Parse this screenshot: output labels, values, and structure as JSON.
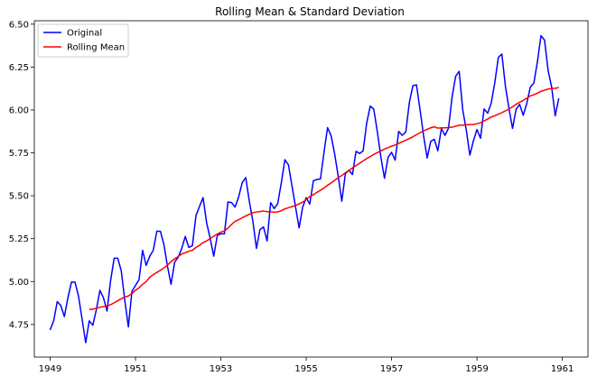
{
  "chart_data": {
    "type": "line",
    "title": "Rolling Mean & Standard Deviation",
    "xlabel": "",
    "ylabel": "",
    "xlim": [
      1948.63,
      1961.6
    ],
    "ylim": [
      4.56,
      6.52
    ],
    "x_ticks": [
      1949,
      1951,
      1953,
      1955,
      1957,
      1959,
      1961
    ],
    "x_tick_labels": [
      "1949",
      "1951",
      "1953",
      "1955",
      "1957",
      "1959",
      "1961"
    ],
    "y_ticks": [
      4.75,
      5.0,
      5.25,
      5.5,
      5.75,
      6.0,
      6.25,
      6.5
    ],
    "y_tick_labels": [
      "4.75",
      "5.00",
      "5.25",
      "5.50",
      "5.75",
      "6.00",
      "6.25",
      "6.50"
    ],
    "grid": false,
    "legend_position": "top-left",
    "x_start": 1949.0,
    "x_step": 0.08333,
    "series": [
      {
        "name": "Original",
        "color": "#0000ff",
        "values": [
          4.718,
          4.771,
          4.883,
          4.86,
          4.796,
          4.905,
          4.997,
          4.997,
          4.913,
          4.779,
          4.644,
          4.771,
          4.745,
          4.836,
          4.949,
          4.905,
          4.828,
          5.004,
          5.136,
          5.136,
          5.063,
          4.89,
          4.736,
          4.942,
          4.977,
          5.011,
          5.182,
          5.094,
          5.147,
          5.182,
          5.293,
          5.293,
          5.215,
          5.088,
          4.984,
          5.112,
          5.142,
          5.193,
          5.263,
          5.199,
          5.209,
          5.384,
          5.438,
          5.489,
          5.342,
          5.252,
          5.148,
          5.268,
          5.278,
          5.278,
          5.464,
          5.46,
          5.434,
          5.493,
          5.576,
          5.606,
          5.468,
          5.352,
          5.193,
          5.303,
          5.318,
          5.236,
          5.46,
          5.425,
          5.455,
          5.576,
          5.71,
          5.68,
          5.557,
          5.434,
          5.313,
          5.434,
          5.489,
          5.451,
          5.587,
          5.595,
          5.598,
          5.753,
          5.897,
          5.849,
          5.743,
          5.613,
          5.468,
          5.628,
          5.649,
          5.624,
          5.759,
          5.746,
          5.762,
          5.924,
          6.023,
          6.004,
          5.872,
          5.724,
          5.602,
          5.724,
          5.753,
          5.707,
          5.875,
          5.852,
          5.872,
          6.045,
          6.142,
          6.146,
          6.001,
          5.849,
          5.72,
          5.817,
          5.829,
          5.762,
          5.892,
          5.852,
          5.894,
          6.075,
          6.196,
          6.225,
          6.001,
          5.883,
          5.737,
          5.82,
          5.886,
          5.835,
          6.006,
          5.981,
          6.04,
          6.157,
          6.306,
          6.326,
          6.138,
          6.009,
          5.892,
          6.004,
          6.033,
          5.969,
          6.038,
          6.133,
          6.157,
          6.282,
          6.433,
          6.407,
          6.23,
          6.133,
          5.966,
          6.068
        ]
      },
      {
        "name": "Rolling Mean",
        "color": "#ff0000",
        "window": 12,
        "values": [
          null,
          null,
          null,
          null,
          null,
          null,
          null,
          null,
          null,
          null,
          null,
          4.837,
          4.839,
          4.844,
          4.85,
          4.854,
          4.857,
          4.865,
          4.876,
          4.888,
          4.9,
          4.909,
          4.916,
          4.93,
          4.949,
          4.964,
          4.984,
          4.999,
          5.025,
          5.04,
          5.053,
          5.066,
          5.079,
          5.096,
          5.117,
          5.132,
          5.146,
          5.161,
          5.168,
          5.177,
          5.182,
          5.199,
          5.211,
          5.227,
          5.237,
          5.25,
          5.264,
          5.277,
          5.288,
          5.295,
          5.312,
          5.333,
          5.351,
          5.36,
          5.372,
          5.382,
          5.392,
          5.401,
          5.405,
          5.408,
          5.411,
          5.407,
          5.407,
          5.404,
          5.406,
          5.413,
          5.424,
          5.43,
          5.437,
          5.443,
          5.453,
          5.463,
          5.477,
          5.495,
          5.506,
          5.52,
          5.532,
          5.546,
          5.561,
          5.575,
          5.59,
          5.605,
          5.618,
          5.634,
          5.648,
          5.662,
          5.676,
          5.689,
          5.703,
          5.717,
          5.728,
          5.741,
          5.752,
          5.761,
          5.772,
          5.78,
          5.789,
          5.796,
          5.806,
          5.815,
          5.824,
          5.834,
          5.844,
          5.856,
          5.867,
          5.878,
          5.888,
          5.896,
          5.902,
          5.894,
          5.896,
          5.896,
          5.898,
          5.9,
          5.905,
          5.911,
          5.911,
          5.914,
          5.915,
          5.915,
          5.92,
          5.926,
          5.936,
          5.947,
          5.959,
          5.966,
          5.975,
          5.984,
          5.995,
          6.005,
          6.018,
          6.033,
          6.045,
          6.056,
          6.069,
          6.082,
          6.089,
          6.098,
          6.109,
          6.115,
          6.122,
          6.125,
          6.126,
          6.131
        ]
      }
    ]
  }
}
